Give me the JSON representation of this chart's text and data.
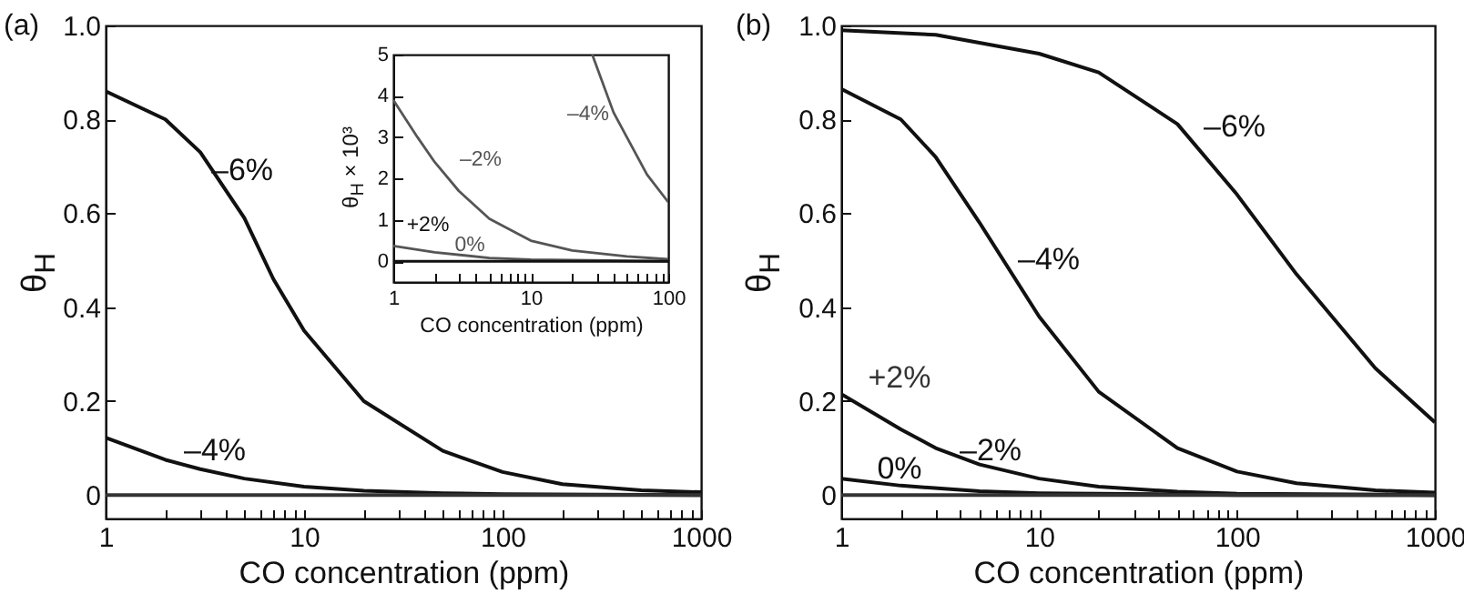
{
  "chart_data": [
    {
      "type": "line",
      "title": "(a)",
      "xlabel": "CO concentration (ppm)",
      "ylabel": "θ$_{H}$",
      "log": "x",
      "xlim": [
        1,
        1000
      ],
      "ylim": [
        -0.05,
        1
      ],
      "grid": false,
      "xticks": [
        1,
        {
          "value": 2,
          "label": null
        },
        {
          "value": 3,
          "label": null
        },
        {
          "value": 4,
          "label": null
        },
        {
          "value": 5,
          "label": null
        },
        {
          "value": 6,
          "label": null
        },
        {
          "value": 7,
          "label": null
        },
        {
          "value": 8,
          "label": null
        },
        {
          "value": 9,
          "label": null
        },
        10,
        {
          "value": 20,
          "label": null
        },
        {
          "value": 30,
          "label": null
        },
        {
          "value": 40,
          "label": null
        },
        {
          "value": 50,
          "label": null
        },
        {
          "value": 60,
          "label": null
        },
        {
          "value": 70,
          "label": null
        },
        {
          "value": 80,
          "label": null
        },
        {
          "value": 90,
          "label": null
        },
        100,
        {
          "value": 200,
          "label": null
        },
        {
          "value": 300,
          "label": null
        },
        {
          "value": 400,
          "label": null
        },
        {
          "value": 500,
          "label": null
        },
        {
          "value": 600,
          "label": null
        },
        {
          "value": 700,
          "label": null
        },
        {
          "value": 800,
          "label": null
        },
        {
          "value": 900,
          "label": null
        },
        1000
      ],
      "yticks": [
        0,
        0.2,
        0.4,
        0.6,
        0.8,
        {
          "value": 1,
          "label": "1.0"
        }
      ],
      "series": [
        {
          "name": "–6%",
          "color": "#111111",
          "x": [
            1,
            2,
            3,
            5,
            7,
            10,
            20,
            50,
            100,
            200,
            500,
            1000
          ],
          "values": [
            0.86,
            0.8,
            0.73,
            0.59,
            0.46,
            0.35,
            0.2,
            0.094,
            0.049,
            0.023,
            0.01,
            0.006
          ]
        },
        {
          "name": "–4%",
          "color": "#111111",
          "x": [
            1,
            2,
            3,
            5,
            10,
            20,
            50,
            100,
            1000
          ],
          "values": [
            0.122,
            0.075,
            0.055,
            0.035,
            0.018,
            0.009,
            0.004,
            0.002,
            0
          ]
        },
        {
          "color": "#333333",
          "x": [
            1,
            1000
          ],
          "values": [
            0,
            0
          ]
        }
      ]
    },
    {
      "type": "line",
      "xlabel": "CO concentration (ppm)",
      "ylabel": "θ$_{H}$ × 10³",
      "log": "x",
      "xlim": [
        1,
        100
      ],
      "ylim": [
        -0.5,
        5
      ],
      "grid": false,
      "xticks": [
        1,
        {
          "value": 2,
          "label": null
        },
        {
          "value": 3,
          "label": null
        },
        {
          "value": 4,
          "label": null
        },
        {
          "value": 5,
          "label": null
        },
        {
          "value": 6,
          "label": null
        },
        {
          "value": 7,
          "label": null
        },
        {
          "value": 8,
          "label": null
        },
        {
          "value": 9,
          "label": null
        },
        10,
        {
          "value": 20,
          "label": null
        },
        {
          "value": 30,
          "label": null
        },
        {
          "value": 40,
          "label": null
        },
        {
          "value": 50,
          "label": null
        },
        {
          "value": 60,
          "label": null
        },
        {
          "value": 70,
          "label": null
        },
        {
          "value": 80,
          "label": null
        },
        {
          "value": 90,
          "label": null
        },
        100
      ],
      "yticks": [
        0,
        1,
        2,
        3,
        4,
        5
      ],
      "series": [
        {
          "name": "–4%",
          "color": "#555555",
          "x": [
            28,
            40,
            50,
            70,
            100
          ],
          "values": [
            5,
            3.6,
            3,
            2.1,
            1.43
          ]
        },
        {
          "name": "–2%",
          "color": "#555555",
          "x": [
            1,
            1.5,
            2,
            3,
            5,
            10,
            20,
            50,
            100
          ],
          "values": [
            3.9,
            3,
            2.4,
            1.7,
            1.03,
            0.5,
            0.26,
            0.12,
            0.05
          ]
        },
        {
          "name": "0%",
          "color": "#555555",
          "x": [
            1,
            2,
            5,
            10,
            100
          ],
          "values": [
            0.37,
            0.22,
            0.08,
            0.04,
            0
          ]
        },
        {
          "name": "+2%",
          "color": "#111111",
          "x": [
            1,
            100
          ],
          "values": [
            0,
            0
          ]
        }
      ]
    },
    {
      "type": "line",
      "title": "(b)",
      "xlabel": "CO concentration (ppm)",
      "ylabel": "θ$_{H}$",
      "log": "x",
      "xlim": [
        1,
        1000
      ],
      "ylim": [
        -0.05,
        1
      ],
      "grid": false,
      "xticks": [
        1,
        {
          "value": 2,
          "label": null
        },
        {
          "value": 3,
          "label": null
        },
        {
          "value": 4,
          "label": null
        },
        {
          "value": 5,
          "label": null
        },
        {
          "value": 6,
          "label": null
        },
        {
          "value": 7,
          "label": null
        },
        {
          "value": 8,
          "label": null
        },
        {
          "value": 9,
          "label": null
        },
        10,
        {
          "value": 20,
          "label": null
        },
        {
          "value": 30,
          "label": null
        },
        {
          "value": 40,
          "label": null
        },
        {
          "value": 50,
          "label": null
        },
        {
          "value": 60,
          "label": null
        },
        {
          "value": 70,
          "label": null
        },
        {
          "value": 80,
          "label": null
        },
        {
          "value": 90,
          "label": null
        },
        100,
        {
          "value": 200,
          "label": null
        },
        {
          "value": 300,
          "label": null
        },
        {
          "value": 400,
          "label": null
        },
        {
          "value": 500,
          "label": null
        },
        {
          "value": 600,
          "label": null
        },
        {
          "value": 700,
          "label": null
        },
        {
          "value": 800,
          "label": null
        },
        {
          "value": 900,
          "label": null
        },
        1000
      ],
      "yticks": [
        0,
        0.2,
        0.4,
        0.6,
        0.8,
        {
          "value": 1,
          "label": "1.0"
        }
      ],
      "series": [
        {
          "name": "–6%",
          "color": "#111111",
          "x": [
            1,
            3,
            10,
            20,
            50,
            100,
            200,
            500,
            1000
          ],
          "values": [
            0.99,
            0.98,
            0.94,
            0.9,
            0.79,
            0.64,
            0.47,
            0.27,
            0.155
          ]
        },
        {
          "name": "–4%",
          "color": "#111111",
          "x": [
            1,
            2,
            3,
            5,
            10,
            20,
            50,
            100,
            200,
            500,
            1000
          ],
          "values": [
            0.865,
            0.8,
            0.72,
            0.58,
            0.38,
            0.22,
            0.1,
            0.05,
            0.025,
            0.01,
            0.005
          ]
        },
        {
          "name": "–2%",
          "color": "#111111",
          "x": [
            1,
            2,
            3,
            5,
            10,
            20,
            50,
            100,
            1000
          ],
          "values": [
            0.215,
            0.14,
            0.1,
            0.065,
            0.035,
            0.018,
            0.007,
            0.003,
            0
          ]
        },
        {
          "name": "0%",
          "color": "#111111",
          "x": [
            1,
            2,
            5,
            10,
            100,
            1000
          ],
          "values": [
            0.035,
            0.02,
            0.008,
            0.004,
            0,
            0
          ]
        },
        {
          "name": "+2%",
          "color": "#333333",
          "x": [
            1,
            1000
          ],
          "values": [
            0,
            0
          ]
        }
      ]
    }
  ]
}
